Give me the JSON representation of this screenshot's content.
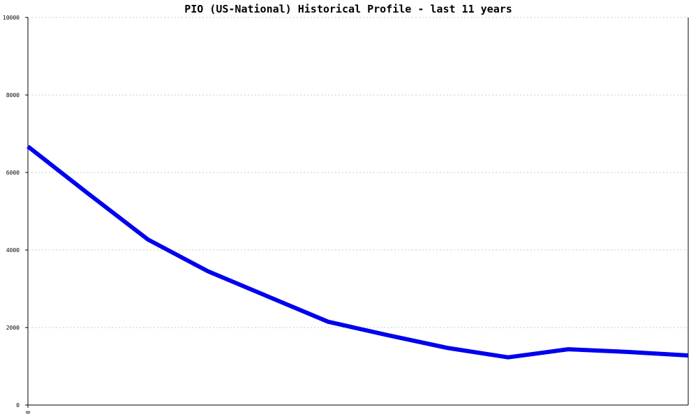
{
  "chart_data": {
    "type": "line",
    "title": "PIO (US-National) Historical Profile - last 11 years",
    "xlabel": "",
    "ylabel": "",
    "ylim": [
      0,
      10000
    ],
    "y_ticks": [
      0,
      2000,
      4000,
      6000,
      8000,
      10000
    ],
    "y_tick_labels": [
      "0",
      "2000",
      "4000",
      "6000",
      "8000",
      "10000"
    ],
    "x_tick_labels": [
      "0"
    ],
    "xlim": [
      0,
      11
    ],
    "grid": true,
    "series": [
      {
        "color": "#0000ee",
        "x": [
          0,
          1,
          2,
          3,
          4,
          5,
          6,
          7,
          8,
          9,
          10,
          11
        ],
        "values": [
          6670,
          5460,
          4270,
          3450,
          2800,
          2150,
          1800,
          1470,
          1230,
          1440,
          1370,
          1280
        ]
      }
    ]
  }
}
